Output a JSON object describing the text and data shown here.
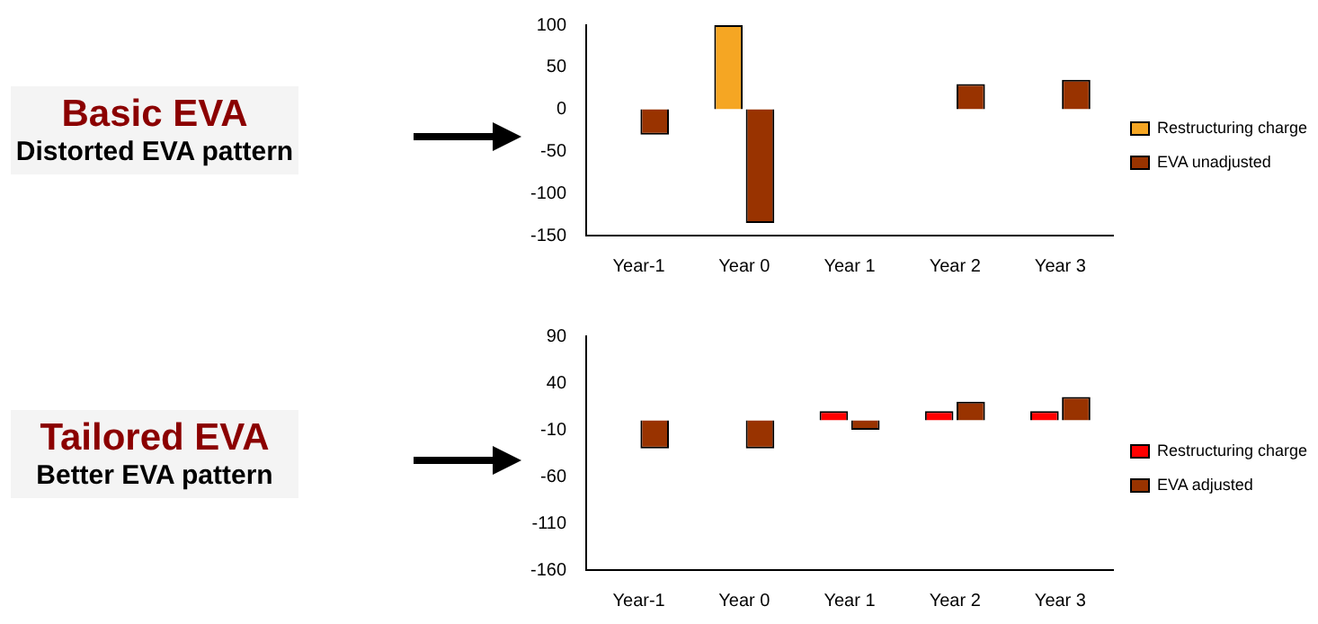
{
  "chart_data": [
    {
      "type": "other",
      "title": "Basic EVA",
      "subtitle": "Distorted EVA pattern"
    },
    {
      "type": "bar",
      "categories": [
        "Year-1",
        "Year 0",
        "Year 1",
        "Year 2",
        "Year 3"
      ],
      "series": [
        {
          "name": "Restructuring charge",
          "color": "#f5a623",
          "values": [
            0,
            100,
            0,
            0,
            0
          ]
        },
        {
          "name": "EVA unadjusted",
          "color": "#993300",
          "values": [
            -30,
            -135,
            0,
            30,
            35
          ]
        }
      ],
      "ylim": [
        -150,
        100
      ],
      "yticks": [
        -150,
        -100,
        -50,
        0,
        50,
        100
      ],
      "grid": false,
      "legend": "right"
    },
    {
      "type": "other",
      "title": "Tailored EVA",
      "subtitle": "Better EVA pattern"
    },
    {
      "type": "bar",
      "categories": [
        "Year-1",
        "Year 0",
        "Year 1",
        "Year 2",
        "Year 3"
      ],
      "series": [
        {
          "name": "Restructuring charge",
          "color": "#ff0000",
          "values": [
            0,
            0,
            10,
            10,
            10
          ]
        },
        {
          "name": "EVA adjusted",
          "color": "#993300",
          "values": [
            -30,
            -30,
            -10,
            20,
            25
          ]
        }
      ],
      "ylim": [
        -160,
        90
      ],
      "yticks": [
        -160,
        -110,
        -60,
        -10,
        40,
        90
      ],
      "grid": false,
      "legend": "right"
    }
  ]
}
